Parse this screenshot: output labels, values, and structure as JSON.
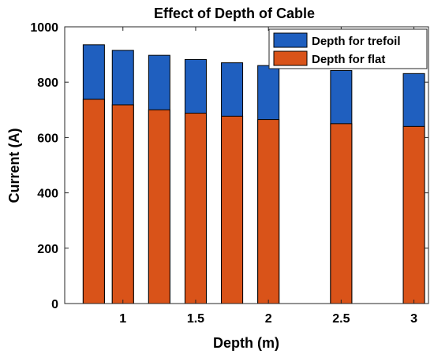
{
  "chart_data": {
    "type": "bar",
    "title": "Effect of Depth of Cable",
    "xlabel": "Depth (m)",
    "ylabel": "Current (A)",
    "x": [
      0.8,
      1.0,
      1.25,
      1.5,
      1.75,
      2.0,
      2.5,
      3.0
    ],
    "xlim": [
      0.6,
      3.1
    ],
    "ylim": [
      0,
      1000
    ],
    "xticks": [
      "1",
      "1.5",
      "2",
      "2.5",
      "3"
    ],
    "xtick_values": [
      1,
      1.5,
      2,
      2.5,
      3
    ],
    "yticks": [
      "0",
      "200",
      "400",
      "600",
      "800",
      "1000"
    ],
    "ytick_values": [
      0,
      200,
      400,
      600,
      800,
      1000
    ],
    "grid": false,
    "legend_position": "top-right",
    "series": [
      {
        "name": "Depth for trefoil",
        "color": "#1f5fbf",
        "values": [
          935,
          915,
          897,
          882,
          870,
          860,
          842,
          831
        ]
      },
      {
        "name": "Depth for flat",
        "color": "#d95319",
        "values": [
          738,
          718,
          700,
          688,
          677,
          665,
          650,
          640
        ]
      }
    ]
  }
}
